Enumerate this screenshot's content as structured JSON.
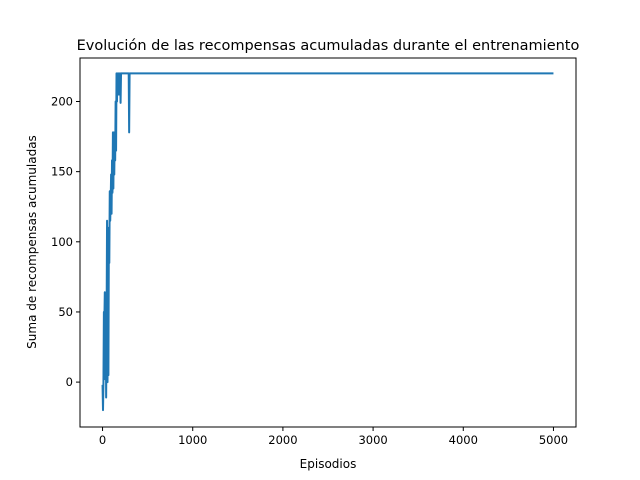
{
  "chart_data": {
    "type": "line",
    "title": "Evolución de las recompensas acumuladas durante el entrenamiento",
    "xlabel": "Episodios",
    "ylabel": "Suma de recompensas acumuladas",
    "xlim": [
      -250,
      5250
    ],
    "ylim": [
      -32,
      231
    ],
    "xticks": [
      0,
      1000,
      2000,
      3000,
      4000,
      5000
    ],
    "yticks": [
      0,
      50,
      100,
      150,
      200
    ],
    "grid": false,
    "legend": "none",
    "series": [
      {
        "color": "#1f77b4",
        "x": [
          0,
          5,
          10,
          15,
          20,
          25,
          30,
          35,
          40,
          45,
          50,
          55,
          60,
          65,
          70,
          75,
          80,
          85,
          90,
          95,
          100,
          105,
          110,
          115,
          120,
          125,
          130,
          135,
          140,
          145,
          150,
          155,
          160,
          165,
          170,
          175,
          180,
          185,
          190,
          195,
          200,
          205,
          210,
          220,
          240,
          260,
          280,
          290,
          295,
          300,
          310,
          350,
          400,
          500,
          1000,
          2000,
          3000,
          4000,
          5000
        ],
        "y": [
          -2,
          -20,
          0,
          50,
          42,
          64,
          2,
          60,
          -11,
          45,
          115,
          0,
          110,
          5,
          104,
          85,
          136,
          115,
          128,
          148,
          120,
          158,
          135,
          178,
          138,
          178,
          148,
          176,
          158,
          200,
          165,
          220,
          200,
          220,
          210,
          220,
          205,
          220,
          215,
          220,
          199,
          220,
          220,
          220,
          220,
          220,
          220,
          220,
          178,
          220,
          220,
          220,
          220,
          220,
          220,
          220,
          220,
          220,
          220
        ]
      }
    ]
  }
}
